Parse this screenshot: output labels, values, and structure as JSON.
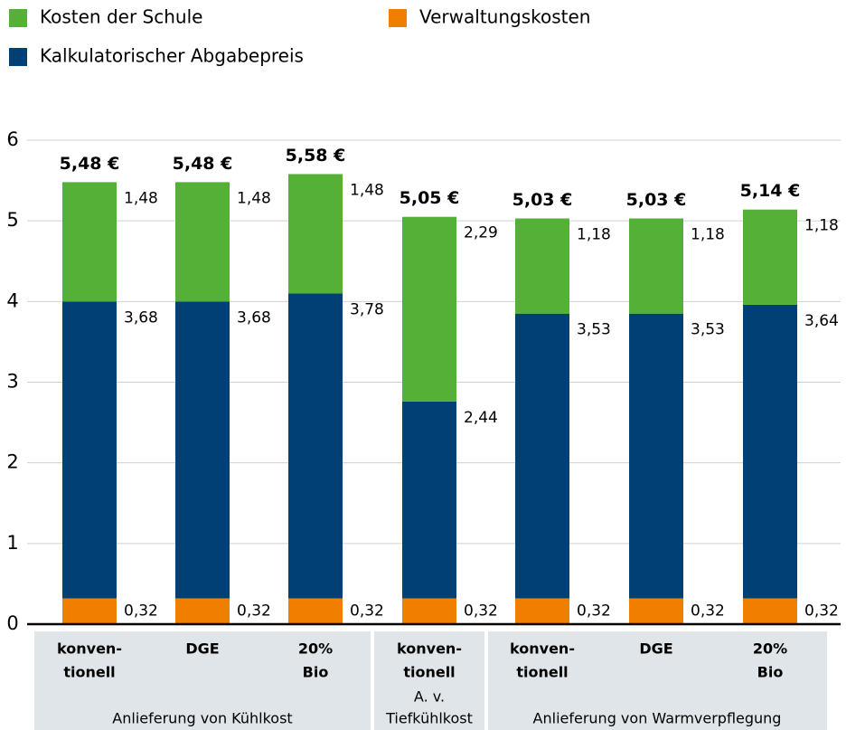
{
  "chart_data": {
    "type": "stacked_bar",
    "categories": [
      [
        "konven-",
        "tionell"
      ],
      [
        "DGE"
      ],
      [
        "20%",
        "Bio"
      ],
      [
        "konven-",
        "tionell"
      ],
      [
        "konven-",
        "tionell"
      ],
      [
        "DGE"
      ],
      [
        "20%",
        "Bio"
      ]
    ],
    "groups": [
      [
        "Anlieferung von Kühlkost"
      ],
      [
        "A. v.",
        "Tiefkühlkost"
      ],
      [
        "Anlieferung von Warmverpflegung"
      ]
    ],
    "series": [
      {
        "name": "Verwaltungskosten",
        "color": "#f07f00",
        "values": [
          0.32,
          0.32,
          0.32,
          0.32,
          0.32,
          0.32,
          0.32
        ],
        "value_labels": [
          "0,32",
          "0,32",
          "0,32",
          "0,32",
          "0,32",
          "0,32",
          "0,32"
        ]
      },
      {
        "name": "Kalkulatorischer Abgabepreis",
        "color": "#004075",
        "values": [
          3.68,
          3.68,
          3.78,
          2.44,
          3.53,
          3.53,
          3.64
        ],
        "value_labels": [
          "3,68",
          "3,68",
          "3,78",
          "2,44",
          "3,53",
          "3,53",
          "3,64"
        ]
      },
      {
        "name": "Kosten der Schule",
        "color": "#54b036",
        "values": [
          1.48,
          1.48,
          1.48,
          2.29,
          1.18,
          1.18,
          1.18
        ],
        "value_labels": [
          "1,48",
          "1,48",
          "1,48",
          "2,29",
          "1,18",
          "1,18",
          "1,18"
        ]
      }
    ],
    "totals": [
      5.48,
      5.48,
      5.58,
      5.05,
      5.03,
      5.03,
      5.14
    ],
    "total_labels": [
      "5,48 €",
      "5,48 €",
      "5,58 €",
      "5,05 €",
      "5,03 €",
      "5,03 €",
      "5,14 €"
    ],
    "ylim": [
      0,
      6
    ],
    "yticks": [
      0,
      1,
      2,
      3,
      4,
      5,
      6
    ],
    "grid": true
  }
}
